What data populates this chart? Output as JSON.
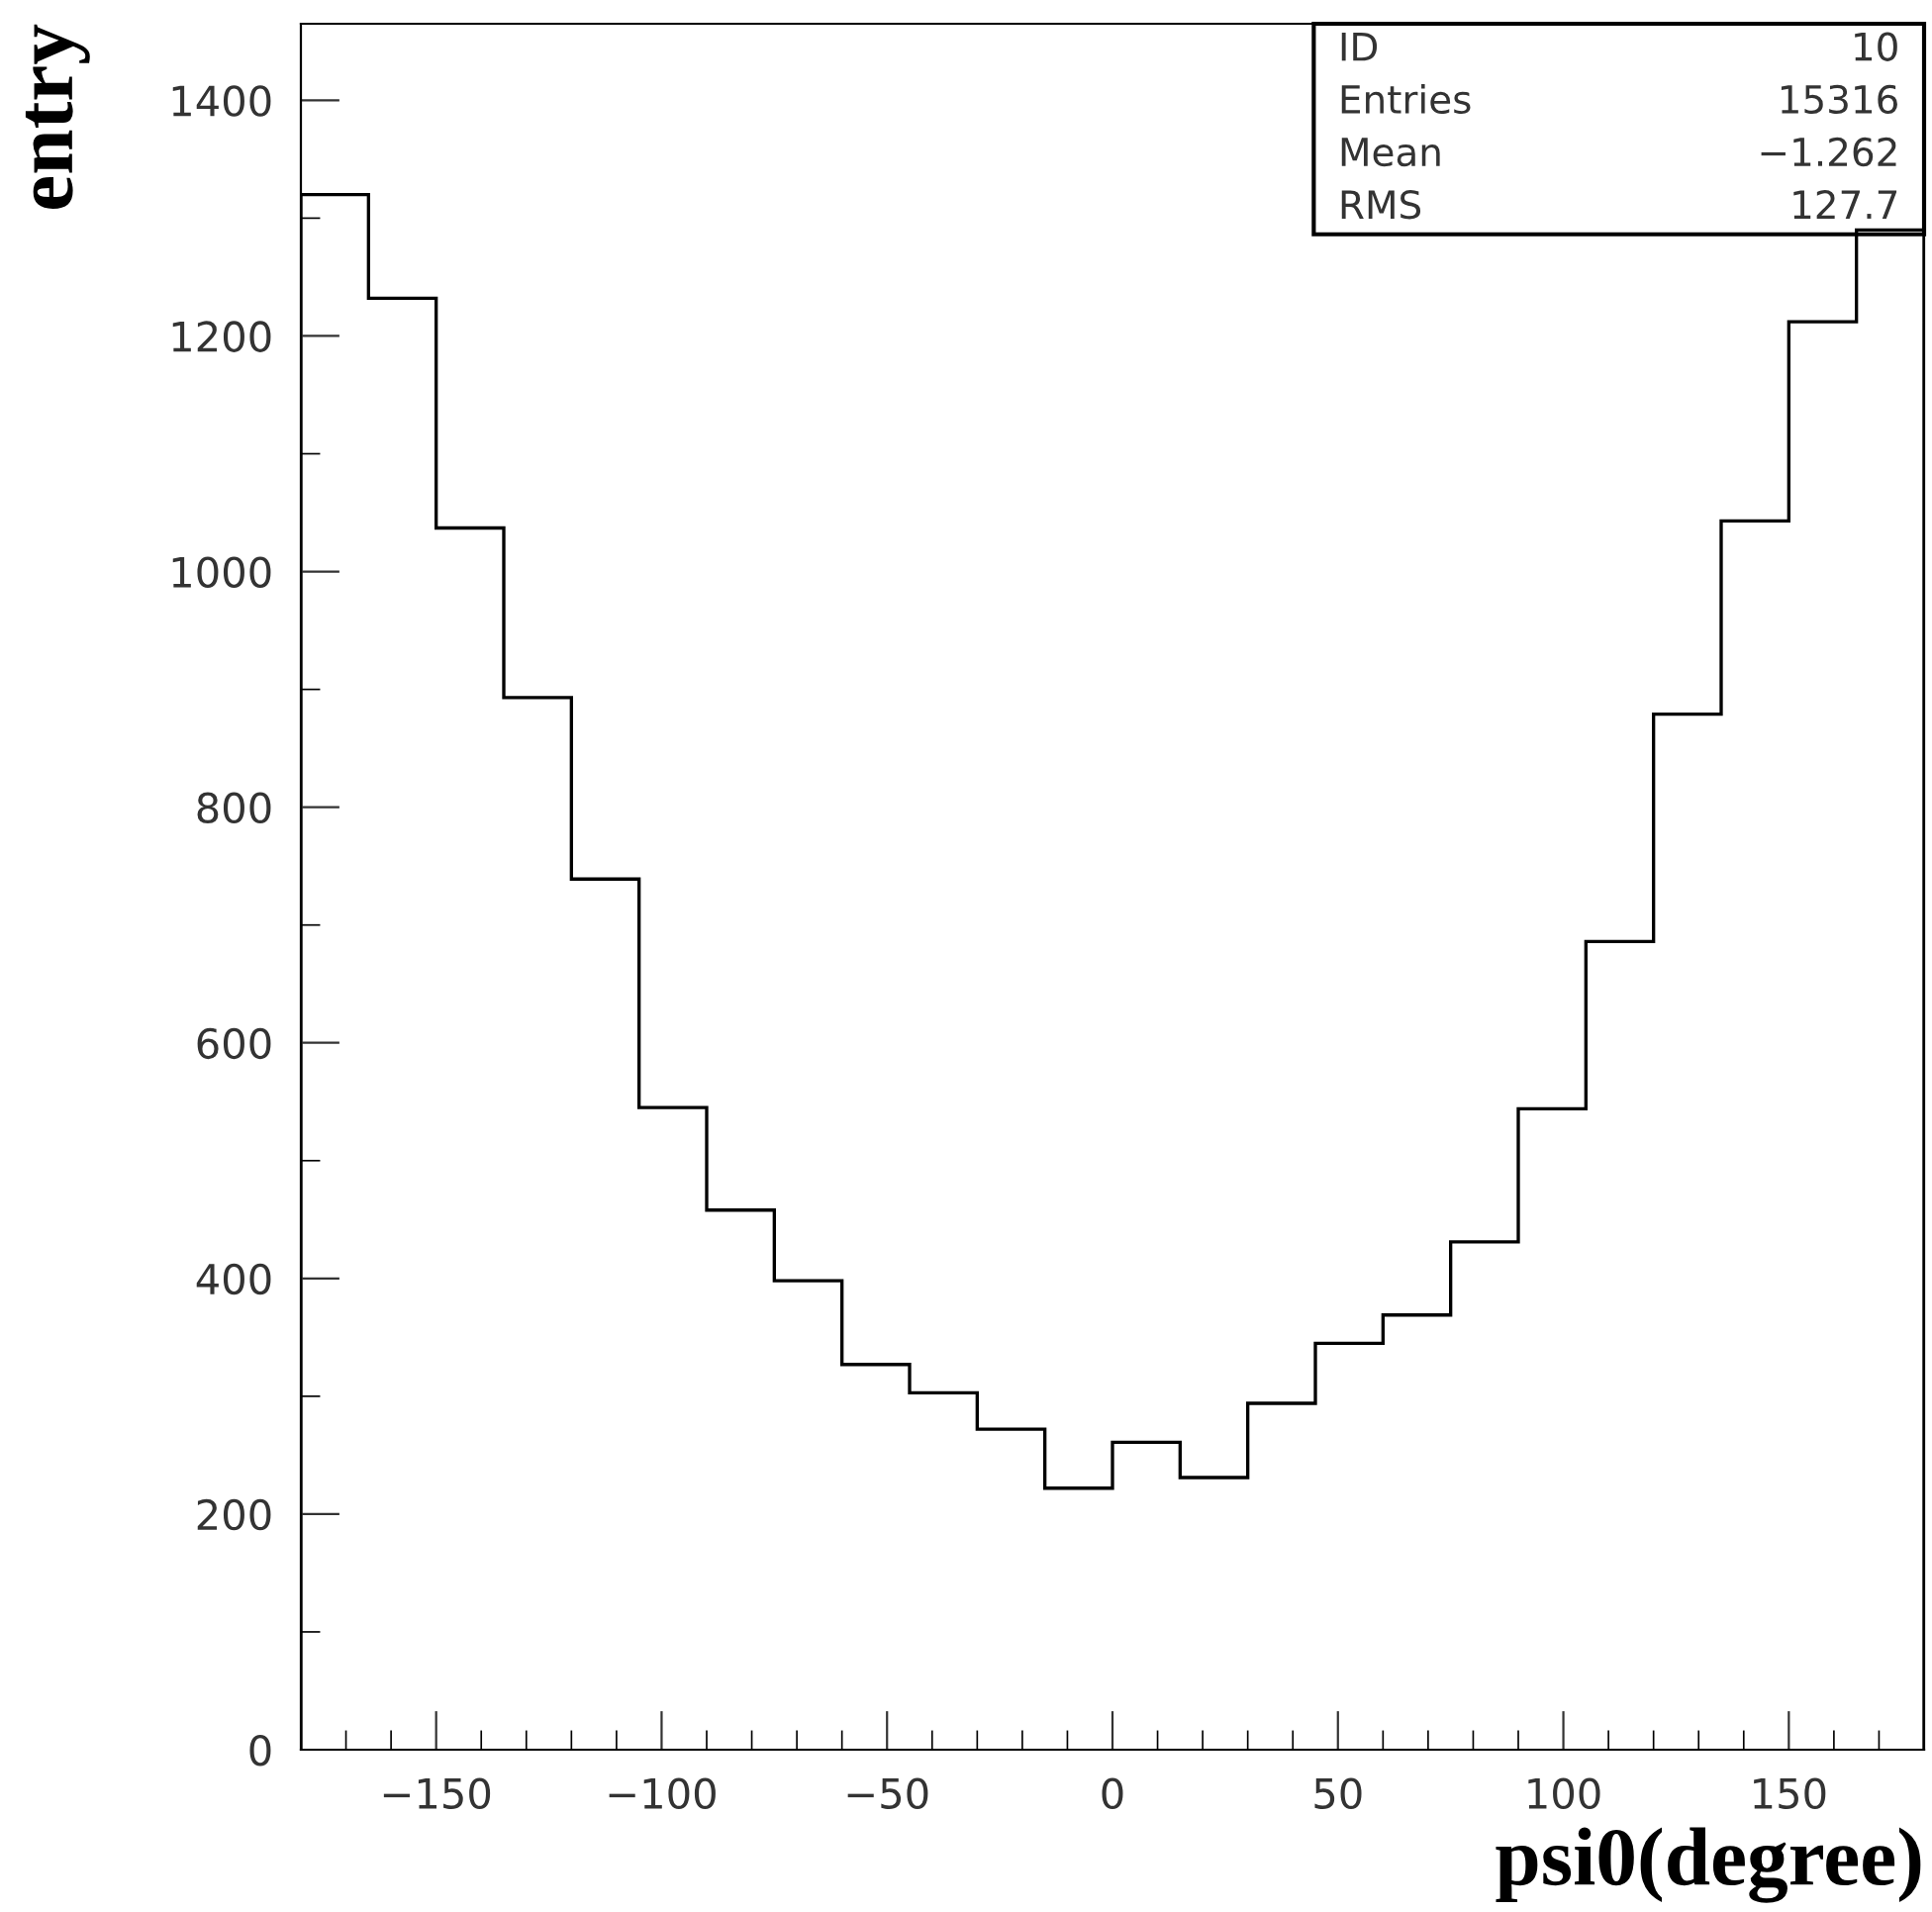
{
  "chart_data": {
    "type": "histogram",
    "xlabel": "psi0(degree)",
    "ylabel": "entry",
    "bins": [
      -180,
      -165,
      -150,
      -135,
      -120,
      -105,
      -90,
      -75,
      -60,
      -45,
      -30,
      -15,
      0,
      15,
      30,
      45,
      60,
      75,
      90,
      105,
      120,
      135,
      150,
      165,
      180
    ],
    "values": [
      1320,
      1232,
      1037,
      893,
      739,
      545,
      458,
      398,
      327,
      303,
      272,
      222,
      261,
      231,
      294,
      345,
      369,
      431,
      544,
      686,
      879,
      1043,
      1212,
      1290
    ],
    "color": "#000000",
    "xlim": [
      -180,
      180
    ],
    "xticks": [
      -150,
      -100,
      -50,
      0,
      50,
      100,
      150
    ],
    "ylim": [
      0,
      1465
    ],
    "yticks": [
      0,
      200,
      400,
      600,
      800,
      1000,
      1200,
      1400
    ],
    "grid": false,
    "legend": false,
    "annotations": [
      "ID",
      "10",
      "Entries",
      "15316",
      "Mean",
      "−1.262",
      "RMS",
      "127.7"
    ]
  }
}
